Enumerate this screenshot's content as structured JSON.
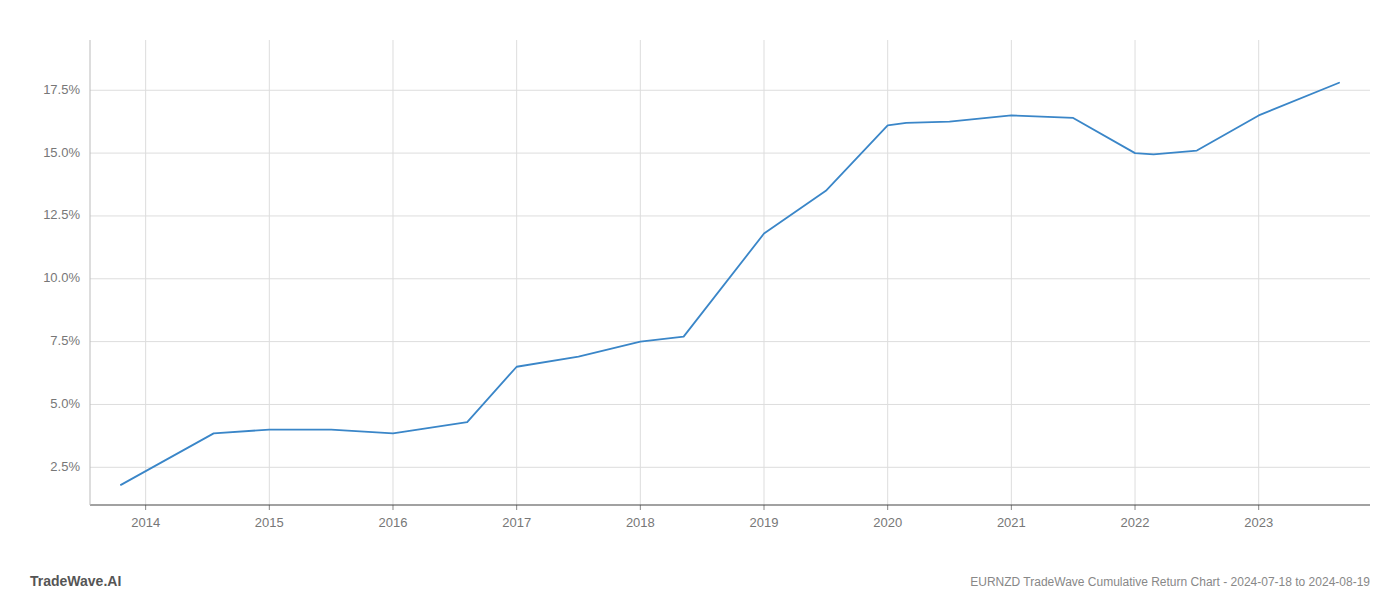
{
  "chart_data": {
    "type": "line",
    "title": "EURNZD TradeWave Cumulative Return Chart - 2024-07-18 to 2024-08-19",
    "annotations": [
      "TradeWave.AI"
    ],
    "x": [
      2013.8,
      2014.55,
      2015.0,
      2015.5,
      2016.0,
      2016.6,
      2017.0,
      2017.5,
      2018.0,
      2018.35,
      2019.0,
      2019.5,
      2020.0,
      2020.15,
      2020.5,
      2021.0,
      2021.5,
      2022.0,
      2022.15,
      2022.5,
      2023.0,
      2023.65
    ],
    "values": [
      1.8,
      3.85,
      4.0,
      4.0,
      3.85,
      4.3,
      6.5,
      6.9,
      7.5,
      7.7,
      11.8,
      13.5,
      16.1,
      16.2,
      16.25,
      16.5,
      16.4,
      15.0,
      14.95,
      15.1,
      16.5,
      17.8
    ],
    "color": "#3a86c8",
    "xlim": [
      2013.55,
      2023.9
    ],
    "ylim": [
      1.0,
      19.5
    ],
    "xticks": [
      2014,
      2015,
      2016,
      2017,
      2018,
      2019,
      2020,
      2021,
      2022,
      2023
    ],
    "yticks": [
      {
        "value": 2.5,
        "label": "2.5%"
      },
      {
        "value": 5.0,
        "label": "5.0%"
      },
      {
        "value": 7.5,
        "label": "7.5%"
      },
      {
        "value": 10.0,
        "label": "10.0%"
      },
      {
        "value": 12.5,
        "label": "12.5%"
      },
      {
        "value": 15.0,
        "label": "15.0%"
      },
      {
        "value": 17.5,
        "label": "17.5%"
      }
    ],
    "grid": true
  }
}
